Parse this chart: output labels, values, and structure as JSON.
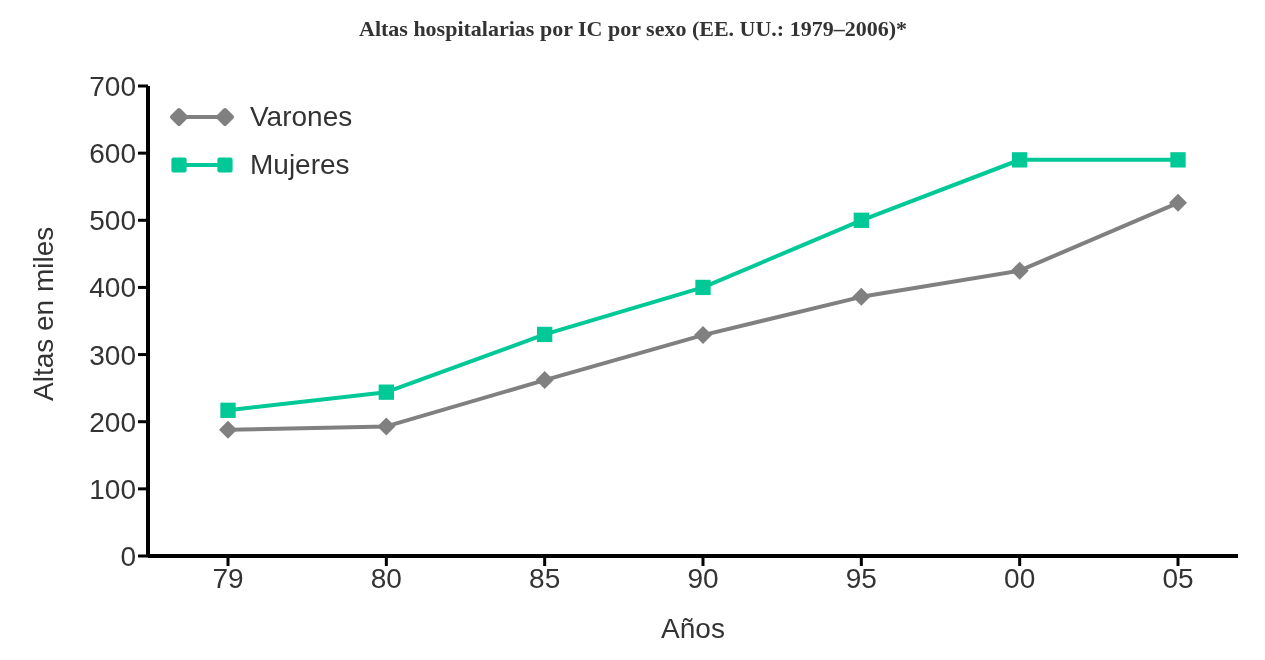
{
  "chart_data": {
    "type": "line",
    "title": "Altas hospitalarias por IC por sexo (EE. UU.: 1979–2006)*",
    "xlabel": "Años",
    "ylabel": "Altas en miles",
    "categories": [
      "79",
      "80",
      "85",
      "90",
      "95",
      "00",
      "05"
    ],
    "series": [
      {
        "name": "Varones",
        "color": "#808080",
        "marker": "diamond",
        "values": [
          188,
          193,
          262,
          329,
          386,
          425,
          526
        ]
      },
      {
        "name": "Mujeres",
        "color": "#00c896",
        "marker": "square",
        "values": [
          217,
          244,
          330,
          400,
          500,
          590,
          590
        ]
      }
    ],
    "ylim": [
      0,
      700
    ],
    "yticks": [
      0,
      100,
      200,
      300,
      400,
      500,
      600,
      700
    ],
    "grid": false,
    "legend": "top left",
    "line_style": "solid"
  }
}
